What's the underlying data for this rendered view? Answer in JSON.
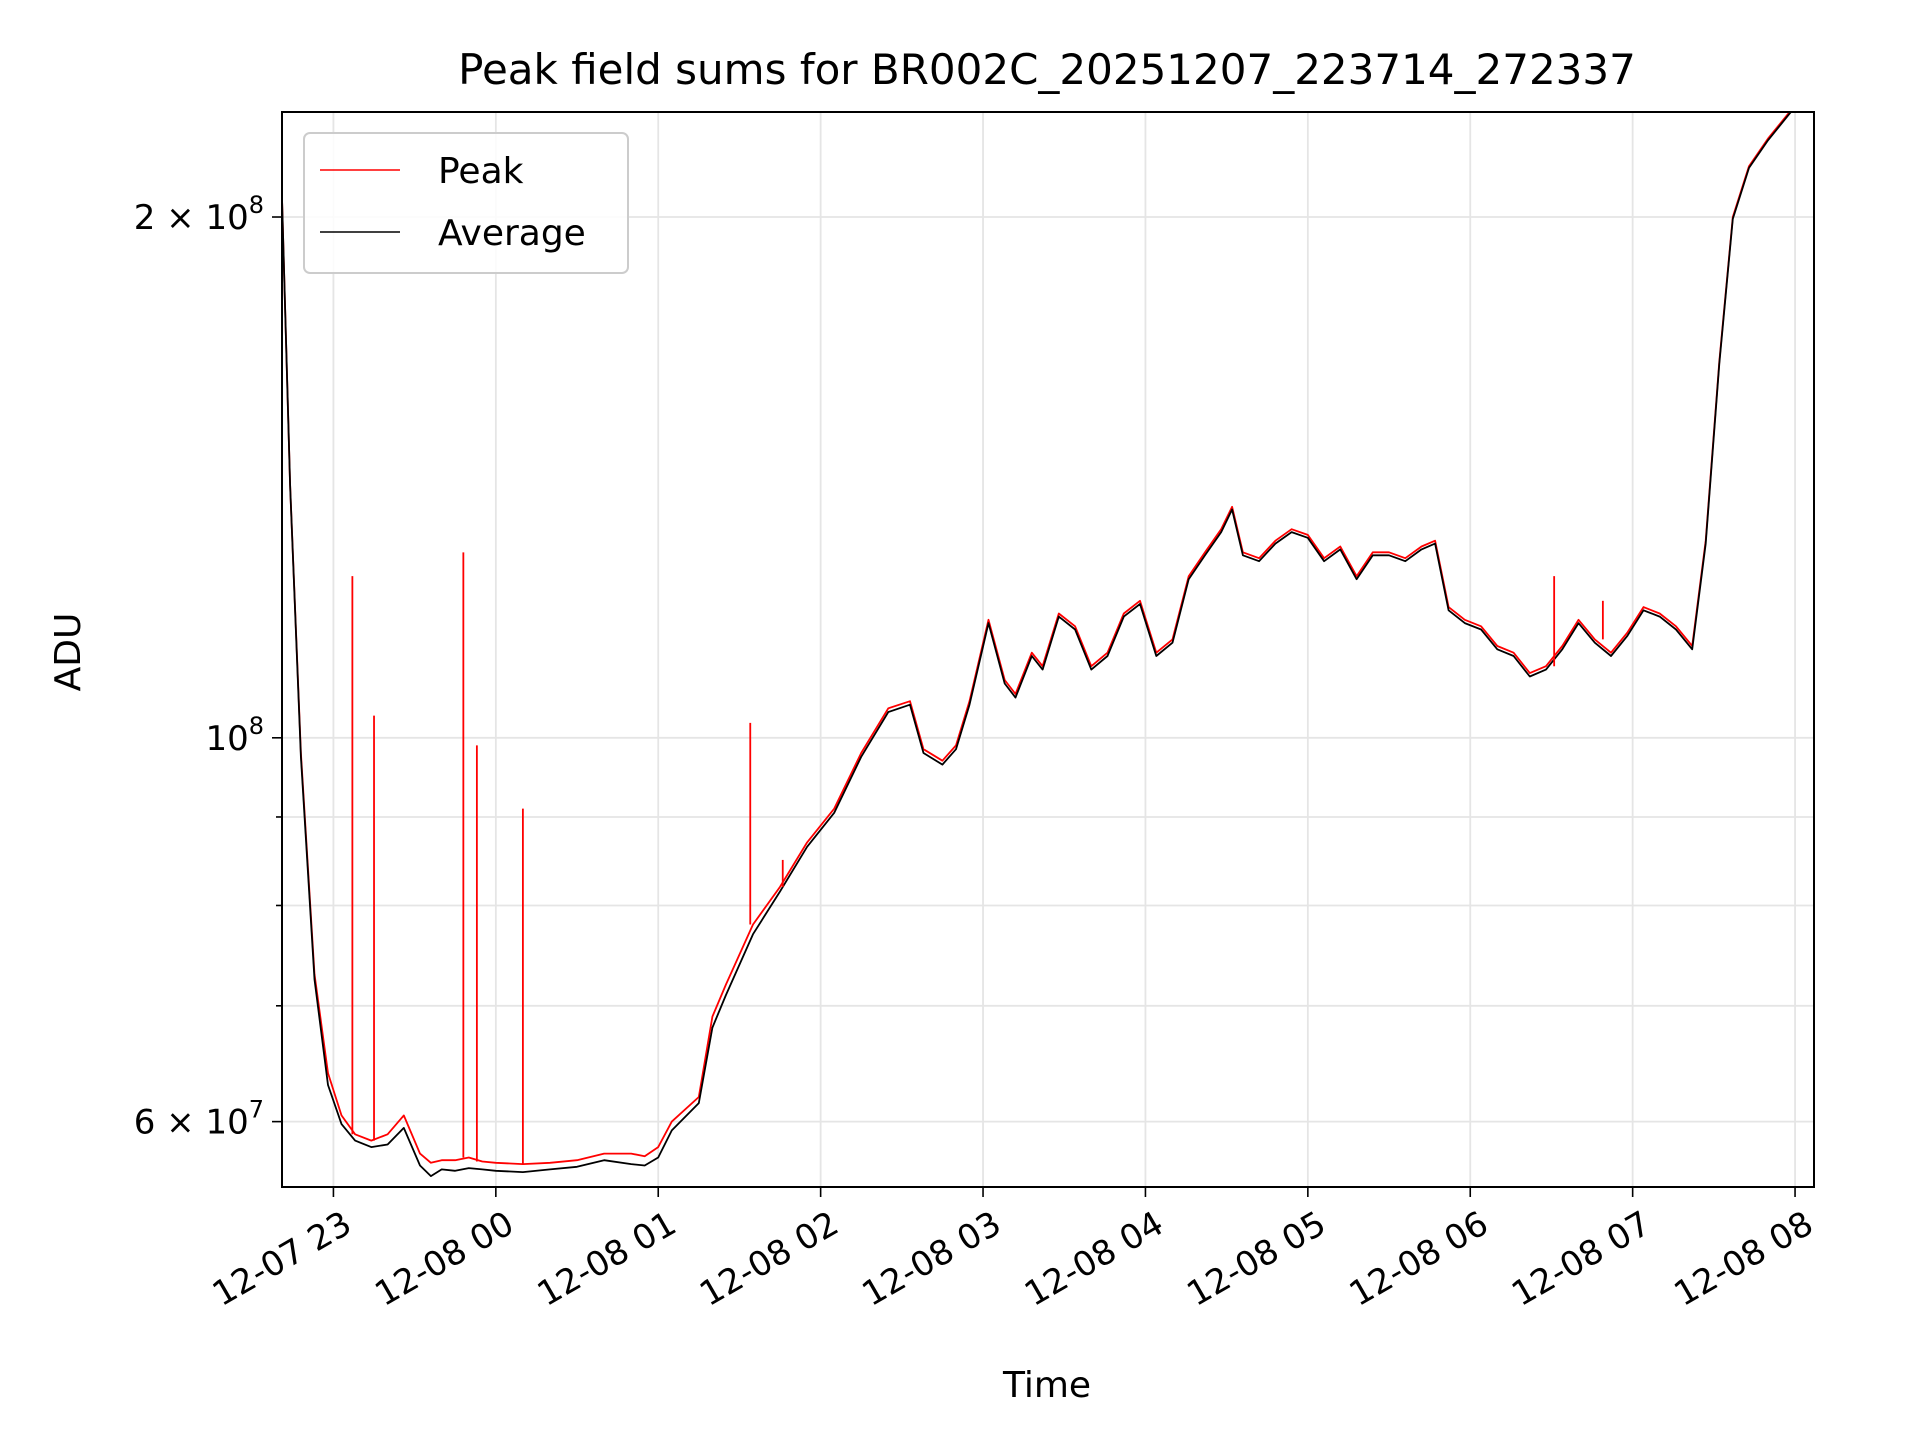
{
  "chart_data": {
    "type": "line",
    "title": "Peak field sums for BR002C_20251207_223714_272337",
    "xlabel": "Time",
    "ylabel": "ADU",
    "yscale": "log",
    "ylim": [
      55000000,
      230000000
    ],
    "xlim": [
      "2025-12-07 22:41",
      "2025-12-08 08:07"
    ],
    "grid": true,
    "legend_position": "top-left",
    "x_ticks": [
      {
        "x": "2025-12-07 23:00",
        "label": "12-07 23"
      },
      {
        "x": "2025-12-08 00:00",
        "label": "12-08 00"
      },
      {
        "x": "2025-12-08 01:00",
        "label": "12-08 01"
      },
      {
        "x": "2025-12-08 02:00",
        "label": "12-08 02"
      },
      {
        "x": "2025-12-08 03:00",
        "label": "12-08 03"
      },
      {
        "x": "2025-12-08 04:00",
        "label": "12-08 04"
      },
      {
        "x": "2025-12-08 05:00",
        "label": "12-08 05"
      },
      {
        "x": "2025-12-08 06:00",
        "label": "12-08 06"
      },
      {
        "x": "2025-12-08 07:00",
        "label": "12-08 07"
      },
      {
        "x": "2025-12-08 08:00",
        "label": "12-08 08"
      }
    ],
    "y_ticks_major": [
      {
        "y": 60000000,
        "label_base": "6 × 10",
        "label_exp": "7"
      },
      {
        "y": 100000000,
        "label_base": "10",
        "label_exp": "8"
      },
      {
        "y": 200000000,
        "label_base": "2 × 10",
        "label_exp": "8"
      }
    ],
    "y_ticks_minor": [
      70000000,
      80000000,
      90000000
    ],
    "series": [
      {
        "name": "Peak",
        "color": "#ff0000",
        "x": [
          "2025-12-07 22:41",
          "2025-12-07 22:44",
          "2025-12-07 22:48",
          "2025-12-07 22:53",
          "2025-12-07 22:58",
          "2025-12-07 23:03",
          "2025-12-07 23:08",
          "2025-12-07 23:14",
          "2025-12-07 23:20",
          "2025-12-07 23:26",
          "2025-12-07 23:32",
          "2025-12-07 23:36",
          "2025-12-07 23:40",
          "2025-12-07 23:45",
          "2025-12-07 23:50",
          "2025-12-07 23:55",
          "2025-12-08 00:00",
          "2025-12-08 00:10",
          "2025-12-08 00:20",
          "2025-12-08 00:30",
          "2025-12-08 00:40",
          "2025-12-08 00:50",
          "2025-12-08 00:55",
          "2025-12-08 01:00",
          "2025-12-08 01:05",
          "2025-12-08 01:15",
          "2025-12-08 01:20",
          "2025-12-08 01:25",
          "2025-12-08 01:35",
          "2025-12-08 01:45",
          "2025-12-08 01:55",
          "2025-12-08 02:05",
          "2025-12-08 02:15",
          "2025-12-08 02:25",
          "2025-12-08 02:33",
          "2025-12-08 02:38",
          "2025-12-08 02:45",
          "2025-12-08 02:50",
          "2025-12-08 02:55",
          "2025-12-08 03:02",
          "2025-12-08 03:08",
          "2025-12-08 03:12",
          "2025-12-08 03:18",
          "2025-12-08 03:22",
          "2025-12-08 03:28",
          "2025-12-08 03:34",
          "2025-12-08 03:40",
          "2025-12-08 03:46",
          "2025-12-08 03:52",
          "2025-12-08 03:58",
          "2025-12-08 04:04",
          "2025-12-08 04:10",
          "2025-12-08 04:16",
          "2025-12-08 04:22",
          "2025-12-08 04:28",
          "2025-12-08 04:32",
          "2025-12-08 04:36",
          "2025-12-08 04:42",
          "2025-12-08 04:48",
          "2025-12-08 04:54",
          "2025-12-08 05:00",
          "2025-12-08 05:06",
          "2025-12-08 05:12",
          "2025-12-08 05:18",
          "2025-12-08 05:24",
          "2025-12-08 05:30",
          "2025-12-08 05:36",
          "2025-12-08 05:42",
          "2025-12-08 05:47",
          "2025-12-08 05:52",
          "2025-12-08 05:58",
          "2025-12-08 06:04",
          "2025-12-08 06:10",
          "2025-12-08 06:16",
          "2025-12-08 06:22",
          "2025-12-08 06:28",
          "2025-12-08 06:34",
          "2025-12-08 06:40",
          "2025-12-08 06:46",
          "2025-12-08 06:52",
          "2025-12-08 06:58",
          "2025-12-08 07:04",
          "2025-12-08 07:10",
          "2025-12-08 07:16",
          "2025-12-08 07:22",
          "2025-12-08 07:27",
          "2025-12-08 07:32",
          "2025-12-08 07:37",
          "2025-12-08 07:43",
          "2025-12-08 07:50",
          "2025-12-08 07:58",
          "2025-12-08 08:00"
        ],
        "y": [
          205000000,
          140000000,
          98000000,
          73000000,
          64000000,
          60500000,
          59000000,
          58500000,
          59000000,
          60500000,
          57500000,
          56800000,
          57000000,
          57000000,
          57200000,
          56900000,
          56800000,
          56700000,
          56800000,
          57000000,
          57500000,
          57500000,
          57300000,
          58000000,
          60000000,
          62000000,
          69000000,
          72000000,
          78000000,
          82000000,
          87000000,
          91000000,
          98000000,
          104000000,
          105000000,
          98500000,
          97000000,
          99000000,
          105000000,
          117000000,
          108000000,
          106000000,
          112000000,
          110000000,
          118000000,
          116000000,
          110000000,
          112000000,
          118000000,
          120000000,
          112000000,
          114000000,
          124000000,
          128000000,
          132000000,
          136000000,
          128000000,
          127000000,
          130000000,
          132000000,
          131000000,
          127000000,
          129000000,
          124000000,
          128000000,
          128000000,
          127000000,
          129000000,
          130000000,
          119000000,
          117000000,
          116000000,
          113000000,
          112000000,
          109000000,
          110000000,
          113000000,
          117000000,
          114000000,
          112000000,
          115000000,
          119000000,
          118000000,
          116000000,
          113000000,
          130000000,
          165000000,
          200000000,
          214000000,
          222000000,
          230000000,
          232000000
        ]
      },
      {
        "name": "Average",
        "color": "#000000",
        "x": [
          "2025-12-07 22:41",
          "2025-12-07 22:44",
          "2025-12-07 22:48",
          "2025-12-07 22:53",
          "2025-12-07 22:58",
          "2025-12-07 23:03",
          "2025-12-07 23:08",
          "2025-12-07 23:14",
          "2025-12-07 23:20",
          "2025-12-07 23:26",
          "2025-12-07 23:32",
          "2025-12-07 23:36",
          "2025-12-07 23:40",
          "2025-12-07 23:45",
          "2025-12-07 23:50",
          "2025-12-07 23:55",
          "2025-12-08 00:00",
          "2025-12-08 00:10",
          "2025-12-08 00:20",
          "2025-12-08 00:30",
          "2025-12-08 00:40",
          "2025-12-08 00:50",
          "2025-12-08 00:55",
          "2025-12-08 01:00",
          "2025-12-08 01:05",
          "2025-12-08 01:15",
          "2025-12-08 01:20",
          "2025-12-08 01:25",
          "2025-12-08 01:35",
          "2025-12-08 01:45",
          "2025-12-08 01:55",
          "2025-12-08 02:05",
          "2025-12-08 02:15",
          "2025-12-08 02:25",
          "2025-12-08 02:33",
          "2025-12-08 02:38",
          "2025-12-08 02:45",
          "2025-12-08 02:50",
          "2025-12-08 02:55",
          "2025-12-08 03:02",
          "2025-12-08 03:08",
          "2025-12-08 03:12",
          "2025-12-08 03:18",
          "2025-12-08 03:22",
          "2025-12-08 03:28",
          "2025-12-08 03:34",
          "2025-12-08 03:40",
          "2025-12-08 03:46",
          "2025-12-08 03:52",
          "2025-12-08 03:58",
          "2025-12-08 04:04",
          "2025-12-08 04:10",
          "2025-12-08 04:16",
          "2025-12-08 04:22",
          "2025-12-08 04:28",
          "2025-12-08 04:32",
          "2025-12-08 04:36",
          "2025-12-08 04:42",
          "2025-12-08 04:48",
          "2025-12-08 04:54",
          "2025-12-08 05:00",
          "2025-12-08 05:06",
          "2025-12-08 05:12",
          "2025-12-08 05:18",
          "2025-12-08 05:24",
          "2025-12-08 05:30",
          "2025-12-08 05:36",
          "2025-12-08 05:42",
          "2025-12-08 05:47",
          "2025-12-08 05:52",
          "2025-12-08 05:58",
          "2025-12-08 06:04",
          "2025-12-08 06:10",
          "2025-12-08 06:16",
          "2025-12-08 06:22",
          "2025-12-08 06:28",
          "2025-12-08 06:34",
          "2025-12-08 06:40",
          "2025-12-08 06:46",
          "2025-12-08 06:52",
          "2025-12-08 06:58",
          "2025-12-08 07:04",
          "2025-12-08 07:10",
          "2025-12-08 07:16",
          "2025-12-08 07:22",
          "2025-12-08 07:27",
          "2025-12-08 07:32",
          "2025-12-08 07:37",
          "2025-12-08 07:43",
          "2025-12-08 07:50",
          "2025-12-08 07:58",
          "2025-12-08 08:00"
        ],
        "y": [
          205000000,
          140000000,
          97500000,
          72500000,
          63000000,
          59800000,
          58500000,
          58000000,
          58200000,
          59500000,
          56600000,
          55800000,
          56300000,
          56200000,
          56400000,
          56300000,
          56200000,
          56100000,
          56300000,
          56500000,
          57000000,
          56700000,
          56600000,
          57200000,
          59300000,
          61500000,
          68000000,
          71000000,
          77000000,
          81500000,
          86500000,
          90500000,
          97500000,
          103500000,
          104500000,
          98000000,
          96500000,
          98500000,
          104500000,
          116500000,
          107500000,
          105500000,
          111500000,
          109500000,
          117500000,
          115500000,
          109500000,
          111500000,
          117500000,
          119500000,
          111500000,
          113500000,
          123500000,
          127500000,
          131500000,
          135500000,
          127500000,
          126500000,
          129500000,
          131500000,
          130500000,
          126500000,
          128500000,
          123500000,
          127500000,
          127500000,
          126500000,
          128500000,
          129500000,
          118500000,
          116500000,
          115500000,
          112500000,
          111500000,
          108500000,
          109500000,
          112500000,
          116500000,
          113500000,
          111500000,
          114500000,
          118500000,
          117500000,
          115500000,
          112500000,
          129500000,
          164500000,
          199500000,
          213500000,
          221500000,
          229500000,
          231500000
        ]
      }
    ],
    "peak_spikes": [
      {
        "x": "2025-12-07 23:07",
        "y": 124000000
      },
      {
        "x": "2025-12-07 23:15",
        "y": 103000000
      },
      {
        "x": "2025-12-07 23:48",
        "y": 128000000
      },
      {
        "x": "2025-12-07 23:53",
        "y": 99000000
      },
      {
        "x": "2025-12-08 00:10",
        "y": 91000000
      },
      {
        "x": "2025-12-08 01:34",
        "y": 102000000
      },
      {
        "x": "2025-12-08 01:46",
        "y": 85000000
      },
      {
        "x": "2025-12-08 06:31",
        "y": 124000000
      },
      {
        "x": "2025-12-08 06:49",
        "y": 120000000
      }
    ]
  }
}
